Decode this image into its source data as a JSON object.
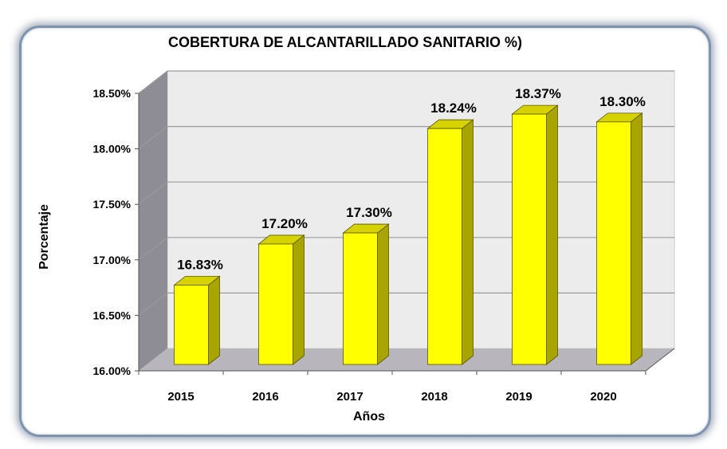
{
  "chart_data": {
    "type": "bar",
    "title": "COBERTURA DE ALCANTARILLADO SANITARIO %)",
    "xlabel": "Años",
    "ylabel": "Porcentaje",
    "categories": [
      "2015",
      "2016",
      "2017",
      "2018",
      "2019",
      "2020"
    ],
    "values": [
      16.83,
      17.2,
      17.3,
      18.24,
      18.37,
      18.3
    ],
    "data_labels": [
      "16.83%",
      "17.20%",
      "17.30%",
      "18.24%",
      "18.37%",
      "18.30%"
    ],
    "yticks": [
      "16.00%",
      "16.50%",
      "17.00%",
      "17.50%",
      "18.00%",
      "18.50%"
    ],
    "ylim": [
      16.0,
      18.5
    ],
    "grid": true,
    "legend": "none",
    "colors": {
      "bar_front": "#ffff00",
      "bar_side": "#a8a400",
      "bar_top": "#d6d200",
      "bar_edge": "#5a5600",
      "wall": "#ececec",
      "side_wall": "#8e8c94",
      "floor": "#b8b6bc",
      "grid": "#9a9a9a"
    }
  }
}
